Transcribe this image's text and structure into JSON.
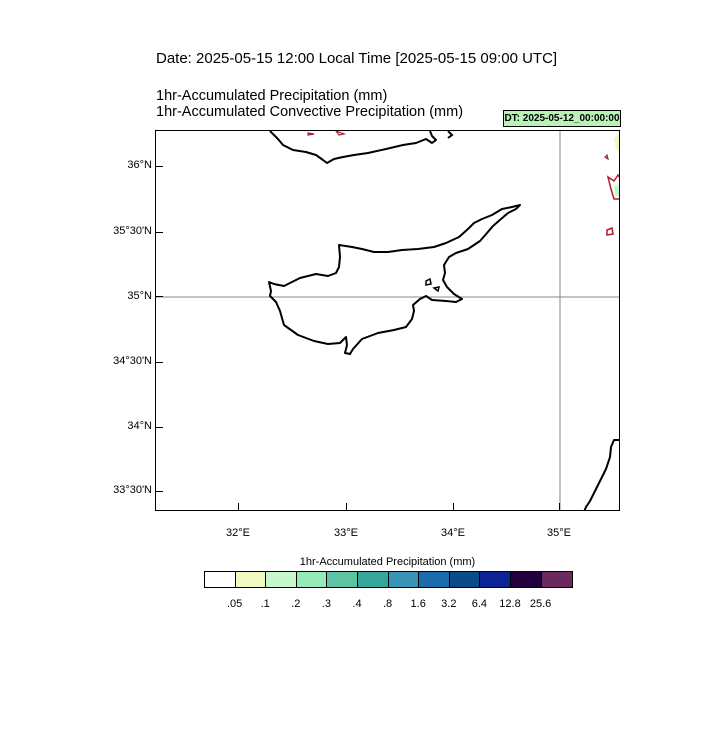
{
  "header": {
    "date_line": "Date: 2025-05-15  12:00 Local Time [2025-05-15  09:00 UTC]",
    "field_line_1": "1hr-Accumulated Precipitation   (mm)",
    "field_line_2": "1hr-Accumulated Convective Precipitation   (mm)",
    "dt_badge": "DT: 2025-05-12_00:00:00"
  },
  "map": {
    "lat_labels": [
      "36°N",
      "35°30'N",
      "35°N",
      "34°30'N",
      "34°N",
      "33°30'N"
    ],
    "lon_labels": [
      "32°E",
      "33°E",
      "34°E",
      "35°E"
    ],
    "reference_lines": {
      "latitude": "35°N",
      "longitude": "35°E"
    },
    "colors": {
      "coastline": "#000000",
      "gridline": "#888888",
      "convective_contour": "#b2182b"
    }
  },
  "colorbar": {
    "title": "1hr-Accumulated Precipitation  (mm)",
    "colors": [
      "#ffffff",
      "#eefac2",
      "#c9f7cc",
      "#96e9b9",
      "#5fc2a3",
      "#34a79a",
      "#3893b5",
      "#1c6cad",
      "#0c4b8a",
      "#0d2296",
      "#22003d",
      "#6a2a5e"
    ],
    "labels": [
      ".05",
      ".1",
      ".2",
      ".3",
      ".4",
      ".8",
      "1.6",
      "3.2",
      "6.4",
      "12.8",
      "25.6"
    ]
  }
}
